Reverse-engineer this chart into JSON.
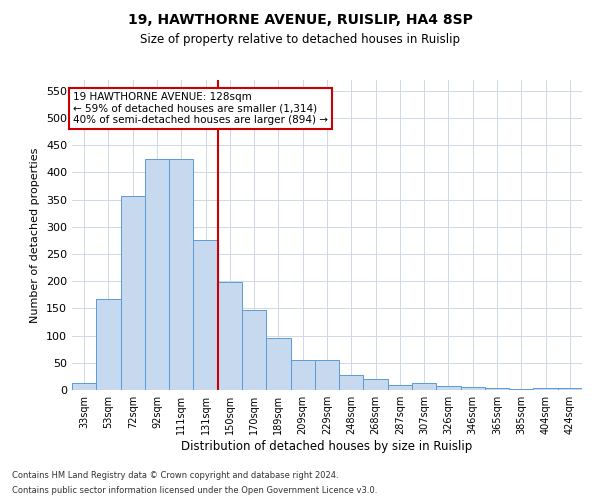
{
  "title1": "19, HAWTHORNE AVENUE, RUISLIP, HA4 8SP",
  "title2": "Size of property relative to detached houses in Ruislip",
  "xlabel": "Distribution of detached houses by size in Ruislip",
  "ylabel": "Number of detached properties",
  "footnote1": "Contains HM Land Registry data © Crown copyright and database right 2024.",
  "footnote2": "Contains public sector information licensed under the Open Government Licence v3.0.",
  "annotation_line1": "19 HAWTHORNE AVENUE: 128sqm",
  "annotation_line2": "← 59% of detached houses are smaller (1,314)",
  "annotation_line3": "40% of semi-detached houses are larger (894) →",
  "bar_labels": [
    "33sqm",
    "53sqm",
    "72sqm",
    "92sqm",
    "111sqm",
    "131sqm",
    "150sqm",
    "170sqm",
    "189sqm",
    "209sqm",
    "229sqm",
    "248sqm",
    "268sqm",
    "287sqm",
    "307sqm",
    "326sqm",
    "346sqm",
    "365sqm",
    "385sqm",
    "404sqm",
    "424sqm"
  ],
  "bar_values": [
    12,
    168,
    357,
    425,
    425,
    275,
    199,
    148,
    96,
    55,
    55,
    27,
    20,
    10,
    12,
    7,
    5,
    4,
    1,
    3,
    3
  ],
  "bar_color": "#c6d9ee",
  "bar_edge_color": "#5b9bd5",
  "vline_x": 5.5,
  "vline_color": "#cc0000",
  "ylim": [
    0,
    570
  ],
  "yticks": [
    0,
    50,
    100,
    150,
    200,
    250,
    300,
    350,
    400,
    450,
    500,
    550
  ],
  "annotation_box_color": "#cc0000",
  "grid_color": "#d0d8e8",
  "title1_fontsize": 10,
  "title2_fontsize": 8.5
}
